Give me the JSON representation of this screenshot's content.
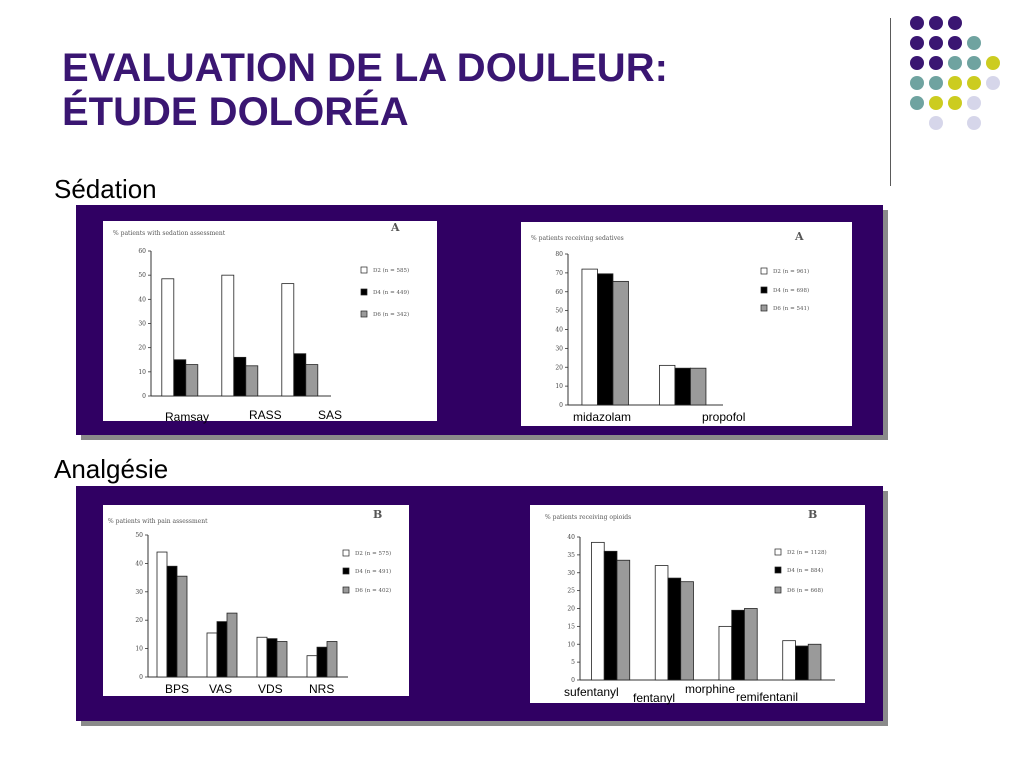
{
  "slide": {
    "title_line1": "EVALUATION DE LA DOULEUR:",
    "title_line2": "ÉTUDE DOLORÉA",
    "section1": "Sédation",
    "section2": "Analgésie"
  },
  "colors": {
    "title": "#3a1672",
    "panel": "#300063",
    "series": [
      "#ffffff",
      "#000000",
      "#9a9a9a"
    ],
    "dots": [
      "#3a1672",
      "#6fa3a0",
      "#cccc20",
      "#d6d6ea"
    ]
  },
  "chart_data": [
    {
      "type": "bar",
      "title": "% patients with sedation assessment",
      "panel_letter": "A",
      "ylim": [
        0,
        60
      ],
      "yticks": [
        0,
        10,
        20,
        30,
        40,
        50,
        60
      ],
      "categories": [
        "Ramsay",
        "RASS",
        "SAS"
      ],
      "series": [
        {
          "name": "D2 (n = 585)",
          "values": [
            48.5,
            50,
            46.5
          ]
        },
        {
          "name": "D4 (n = 449)",
          "values": [
            15,
            16,
            17.5
          ]
        },
        {
          "name": "D6 (n = 342)",
          "values": [
            13,
            12.5,
            13
          ]
        }
      ]
    },
    {
      "type": "bar",
      "title": "% patients receiving sedatives",
      "panel_letter": "A",
      "ylim": [
        0,
        80
      ],
      "yticks": [
        0,
        10,
        20,
        30,
        40,
        50,
        60,
        70,
        80
      ],
      "categories": [
        "midazolam",
        "propofol"
      ],
      "series": [
        {
          "name": "D2 (n = 961)",
          "values": [
            72,
            21
          ]
        },
        {
          "name": "D4 (n = 698)",
          "values": [
            69.5,
            19.5
          ]
        },
        {
          "name": "D6 (n = 541)",
          "values": [
            65.5,
            19.5
          ]
        }
      ]
    },
    {
      "type": "bar",
      "title": "% patients with pain assessment",
      "panel_letter": "B",
      "ylim": [
        0,
        50
      ],
      "yticks": [
        0,
        10,
        20,
        30,
        40,
        50
      ],
      "categories": [
        "BPS",
        "VAS",
        "VDS",
        "NRS"
      ],
      "series": [
        {
          "name": "D2 (n = 575)",
          "values": [
            44,
            15.5,
            14,
            7.5
          ]
        },
        {
          "name": "D4 (n = 491)",
          "values": [
            39,
            19.5,
            13.5,
            10.5
          ]
        },
        {
          "name": "D6 (n = 402)",
          "values": [
            35.5,
            22.5,
            12.5,
            12.5
          ]
        }
      ]
    },
    {
      "type": "bar",
      "title": "% patients receiving opioids",
      "panel_letter": "B",
      "ylim": [
        0,
        40
      ],
      "yticks": [
        0,
        5,
        10,
        15,
        20,
        25,
        30,
        35,
        40
      ],
      "categories": [
        "sufentanyl",
        "fentanyl",
        "morphine",
        "remifentanil"
      ],
      "series": [
        {
          "name": "D2 (n = 1128)",
          "values": [
            38.5,
            32,
            15,
            11
          ]
        },
        {
          "name": "D4 (n = 884)",
          "values": [
            36,
            28.5,
            19.5,
            9.5
          ]
        },
        {
          "name": "D6 (n = 668)",
          "values": [
            33.5,
            27.5,
            20,
            10
          ]
        }
      ]
    }
  ]
}
